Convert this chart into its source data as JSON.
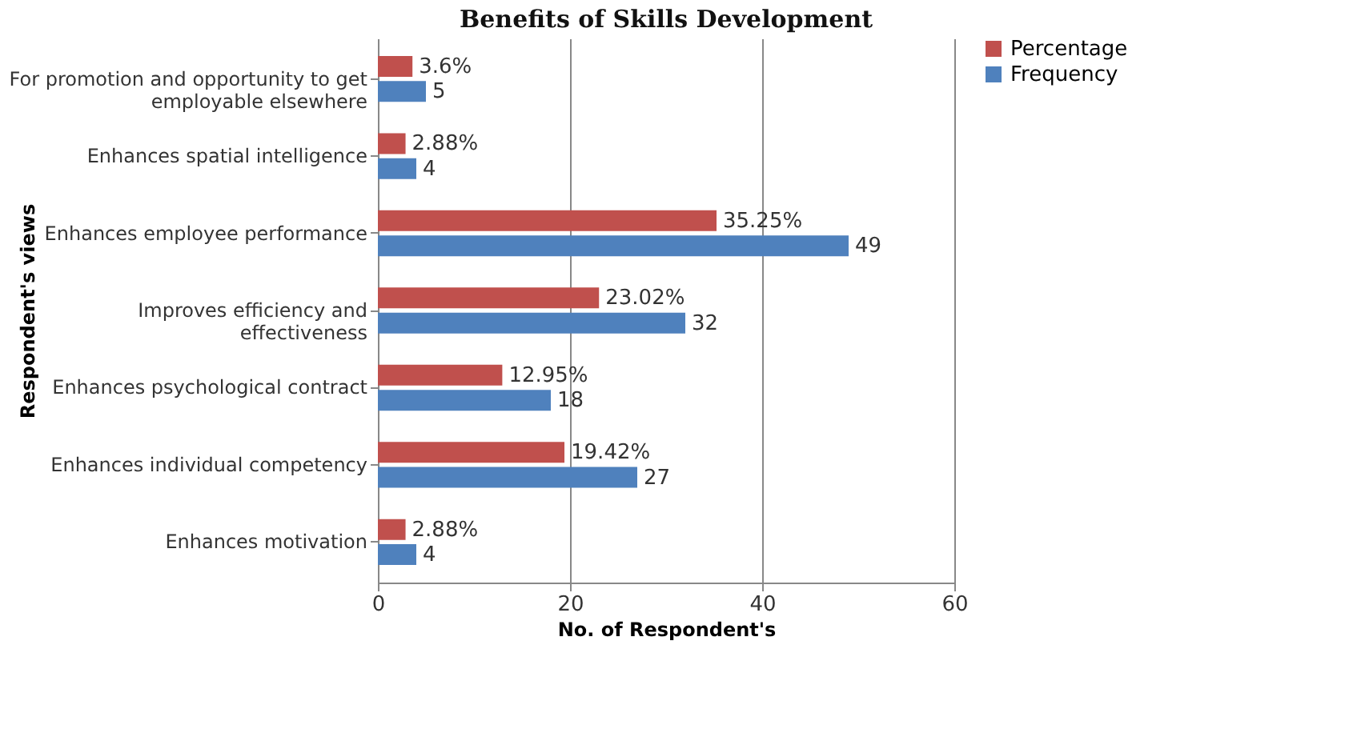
{
  "chart_data": {
    "type": "bar",
    "orientation": "horizontal",
    "title": "Benefits of Skills Development",
    "xlabel": "No. of Respondent's",
    "ylabel": "Respondent's views",
    "categories": [
      "For promotion and opportunity to get employable elsewhere",
      "Enhances spatial intelligence",
      "Enhances employee performance",
      "Improves efficiency and effectiveness",
      "Enhances psychological contract",
      "Enhances individual competency",
      "Enhances motivation"
    ],
    "series": [
      {
        "name": "Percentage",
        "color": "#c0504d",
        "values": [
          3.6,
          2.88,
          35.25,
          23.02,
          12.95,
          19.42,
          2.88
        ],
        "value_labels": [
          "3.6%",
          "2.88%",
          "35.25%",
          "23.02%",
          "12.95%",
          "19.42%",
          "2.88%"
        ]
      },
      {
        "name": "Frequency",
        "color": "#4f81bd",
        "values": [
          5,
          4,
          49,
          32,
          18,
          27,
          4
        ],
        "value_labels": [
          "5",
          "4",
          "49",
          "32",
          "18",
          "27",
          "4"
        ]
      }
    ],
    "xlim": [
      0,
      60
    ],
    "xticks": [
      0,
      20,
      40,
      60
    ],
    "grid": "x",
    "legend": "right"
  }
}
